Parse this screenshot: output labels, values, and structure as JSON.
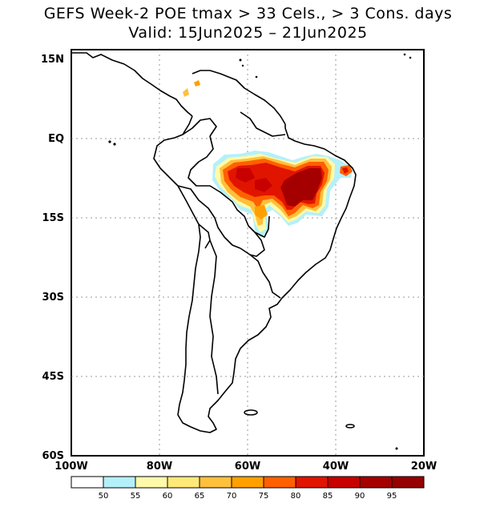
{
  "title_line1": "GEFS Week-2 POE tmax > 33 Cels., > 3 Cons. days",
  "title_line2": "Valid: 15Jun2025 – 21Jun2025",
  "lat_labels": [
    "15N",
    "EQ",
    "15S",
    "30S",
    "45S",
    "60S"
  ],
  "lon_labels": [
    "100W",
    "80W",
    "60W",
    "40W",
    "20W"
  ],
  "colorbar": {
    "labels": [
      "50",
      "55",
      "60",
      "65",
      "70",
      "75",
      "80",
      "85",
      "90",
      "95"
    ],
    "colors": [
      "#ffffff",
      "#b4f0fa",
      "#fffaaa",
      "#ffe878",
      "#ffc03c",
      "#ffa000",
      "#ff6000",
      "#e11400",
      "#c80000",
      "#a50000",
      "#960000"
    ]
  }
}
